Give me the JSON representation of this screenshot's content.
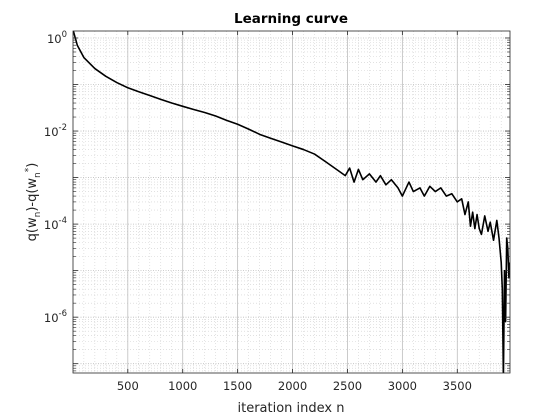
{
  "chart_data": {
    "type": "line",
    "title": "Learning curve",
    "xlabel": "iteration index n",
    "ylabel": "q(w_n)-q(w_n^*)",
    "ylabel_parts": {
      "a": "q(w",
      "a_sub": "n",
      "b": ")-q(w",
      "b_sub": "n",
      "b_sup": "*",
      "c": ")"
    },
    "xlim": [
      1,
      3980
    ],
    "ylim_log10": [
      -7.2,
      0.15
    ],
    "y_scale": "log",
    "grid": "major and minor, dotted",
    "x_ticks": [
      500,
      1000,
      1500,
      2000,
      2500,
      3000,
      3500
    ],
    "x_tick_labels": [
      "500",
      "1000",
      "1500",
      "2000",
      "2500",
      "3000",
      "3500"
    ],
    "y_ticks": [
      {
        "base": "10",
        "exp": "0",
        "log10": 0
      },
      {
        "base": "10",
        "exp": "-2",
        "log10": -2
      },
      {
        "base": "10",
        "exp": "-4",
        "log10": -4
      },
      {
        "base": "10",
        "exp": "-6",
        "log10": -6
      }
    ],
    "series": [
      {
        "color": "#000000",
        "x": [
          1,
          40,
          100,
          200,
          300,
          400,
          500,
          600,
          700,
          800,
          900,
          1000,
          1100,
          1200,
          1300,
          1400,
          1500,
          1600,
          1700,
          1800,
          1900,
          2000,
          2100,
          2200,
          2300,
          2400,
          2480,
          2520,
          2560,
          2600,
          2640,
          2700,
          2760,
          2800,
          2850,
          2900,
          2960,
          3000,
          3060,
          3100,
          3160,
          3200,
          3250,
          3300,
          3350,
          3400,
          3450,
          3500,
          3540,
          3570,
          3600,
          3620,
          3640,
          3660,
          3680,
          3700,
          3720,
          3750,
          3780,
          3800,
          3830,
          3860,
          3880,
          3900,
          3910,
          3920,
          3930,
          3940,
          3950,
          3960,
          3970,
          3980
        ],
        "y": [
          1.5,
          0.7,
          0.38,
          0.22,
          0.15,
          0.11,
          0.085,
          0.07,
          0.058,
          0.048,
          0.04,
          0.034,
          0.029,
          0.025,
          0.021,
          0.017,
          0.014,
          0.011,
          0.0085,
          0.007,
          0.0058,
          0.0048,
          0.004,
          0.0032,
          0.0022,
          0.0015,
          0.0011,
          0.0016,
          0.0008,
          0.0015,
          0.0009,
          0.0012,
          0.0008,
          0.0011,
          0.0007,
          0.0009,
          0.0006,
          0.0004,
          0.0008,
          0.0005,
          0.0006,
          0.0004,
          0.00065,
          0.0005,
          0.0006,
          0.0004,
          0.00045,
          0.0003,
          0.00035,
          0.00016,
          0.0003,
          9e-05,
          0.00018,
          8e-05,
          0.00016,
          8e-05,
          6e-05,
          0.00015,
          7e-05,
          0.00011,
          4.5e-05,
          0.00012,
          5e-05,
          1.5e-05,
          4e-06,
          5e-08,
          1e-05,
          8e-07,
          5e-05,
          3e-05,
          7e-06,
          1.5e-05
        ]
      }
    ]
  }
}
